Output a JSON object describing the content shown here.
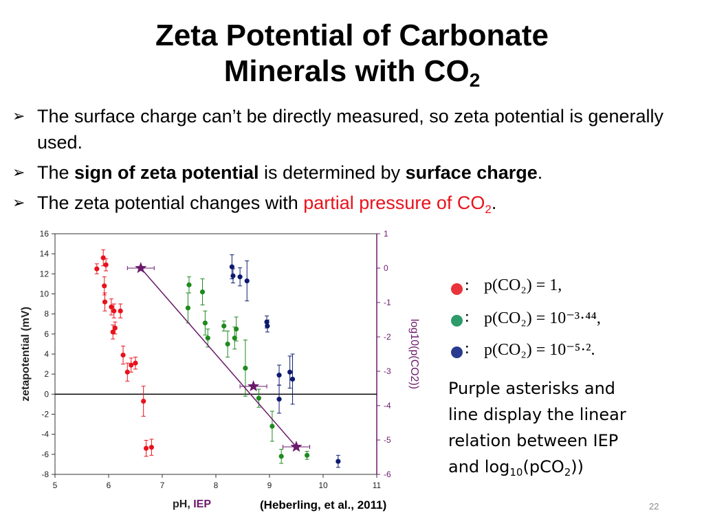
{
  "title": {
    "line1": "Zeta Potential of Carbonate",
    "line2": "Minerals with CO",
    "line2_sub": "2"
  },
  "bullets": [
    {
      "text": "The surface charge can’t be directly measured, so zeta potential is generally used."
    },
    {
      "pre": "The ",
      "bold1": "sign of zeta potential",
      "mid": " is determined by ",
      "bold2": "surface charge",
      "post": "."
    },
    {
      "pre": "The zeta potential changes with ",
      "red": "partial pressure of CO",
      "red_sub": "2",
      "post": "."
    }
  ],
  "legend": [
    {
      "color": "#e8343a",
      "colon": ":",
      "text": "p(CO₂) = 1,"
    },
    {
      "color": "#2e9b6a",
      "colon": ":",
      "text": "p(CO₂) = 10⁻³·⁴⁴,"
    },
    {
      "color": "#2a3a8f",
      "colon": ":",
      "text": "p(CO₂) = 10⁻⁵·²."
    }
  ],
  "description": {
    "line1": "Purple asterisks and",
    "line2": "line display the linear",
    "line3": "relation between IEP",
    "line4_pre": "and log",
    "line4_sub1": "10",
    "line4_mid": "(pCO",
    "line4_sub2": "2",
    "line4_post": "))"
  },
  "citation": "(Heberling, et al., 2011)",
  "page_number": "22",
  "colors": {
    "red": "#e8121b",
    "green": "#1f8a1f",
    "navy": "#0d1a6e",
    "purple": "#6b1a6b"
  },
  "chart_data": {
    "type": "scatter",
    "xlabel_parts": [
      "pH, ",
      "IEP"
    ],
    "ylabel": "zetapotential (mV)",
    "y2label": "log10(p(CO2))",
    "xlim": [
      5,
      11
    ],
    "ylim": [
      -8,
      16
    ],
    "y2lim": [
      -6,
      1
    ],
    "xticks": [
      5,
      6,
      7,
      8,
      9,
      10,
      11
    ],
    "yticks": [
      -8,
      -6,
      -4,
      -2,
      0,
      2,
      4,
      6,
      8,
      10,
      12,
      14,
      16
    ],
    "y2ticks": [
      -6,
      -5,
      -4,
      -3,
      -2,
      -1,
      0,
      1
    ],
    "series": [
      {
        "color": "#e8121b",
        "points": [
          {
            "x": 5.78,
            "y": 12.5,
            "e": 0.5
          },
          {
            "x": 5.9,
            "y": 13.6,
            "e": 0.8
          },
          {
            "x": 5.95,
            "y": 12.9,
            "e": 0.6
          },
          {
            "x": 5.92,
            "y": 10.8,
            "e": 0.9
          },
          {
            "x": 5.93,
            "y": 9.2,
            "e": 0.9
          },
          {
            "x": 6.05,
            "y": 8.7,
            "e": 0.8
          },
          {
            "x": 6.1,
            "y": 8.3,
            "e": 0.7
          },
          {
            "x": 6.22,
            "y": 8.3,
            "e": 0.7
          },
          {
            "x": 6.08,
            "y": 6.2,
            "e": 0.7
          },
          {
            "x": 6.12,
            "y": 6.6,
            "e": 0.6
          },
          {
            "x": 6.27,
            "y": 3.9,
            "e": 0.9
          },
          {
            "x": 6.35,
            "y": 2.2,
            "e": 0.9
          },
          {
            "x": 6.42,
            "y": 2.9,
            "e": 0.7
          },
          {
            "x": 6.5,
            "y": 3.1,
            "e": 0.6
          },
          {
            "x": 6.65,
            "y": -0.7,
            "e": 1.5
          },
          {
            "x": 6.7,
            "y": -5.4,
            "e": 0.8
          },
          {
            "x": 6.8,
            "y": -5.3,
            "e": 0.8
          }
        ]
      },
      {
        "color": "#1f8a1f",
        "points": [
          {
            "x": 7.48,
            "y": 8.6,
            "e": 1.5
          },
          {
            "x": 7.5,
            "y": 10.9,
            "e": 0.8
          },
          {
            "x": 7.75,
            "y": 10.2,
            "e": 1.3
          },
          {
            "x": 7.8,
            "y": 7.1,
            "e": 1.2
          },
          {
            "x": 7.85,
            "y": 5.6,
            "e": 0.9
          },
          {
            "x": 8.15,
            "y": 6.8,
            "e": 0.5
          },
          {
            "x": 8.22,
            "y": 5.0,
            "e": 1.3
          },
          {
            "x": 8.35,
            "y": 5.6,
            "e": 1.1
          },
          {
            "x": 8.38,
            "y": 6.5,
            "e": 1.2
          },
          {
            "x": 8.55,
            "y": 2.6,
            "e": 2.8
          },
          {
            "x": 8.8,
            "y": -0.4,
            "e": 0.9
          },
          {
            "x": 9.05,
            "y": -3.2,
            "e": 1.5
          },
          {
            "x": 9.22,
            "y": -6.2,
            "e": 0.7
          },
          {
            "x": 9.7,
            "y": -6.1,
            "e": 0.4
          }
        ]
      },
      {
        "color": "#0d1a6e",
        "points": [
          {
            "x": 8.3,
            "y": 12.7,
            "e": 1.2
          },
          {
            "x": 8.32,
            "y": 11.8,
            "e": 0.7
          },
          {
            "x": 8.45,
            "y": 11.7,
            "e": 0.9
          },
          {
            "x": 8.58,
            "y": 11.3,
            "e": 2.0
          },
          {
            "x": 8.95,
            "y": 7.2,
            "e": 0.6
          },
          {
            "x": 8.96,
            "y": 6.8,
            "e": 0.6
          },
          {
            "x": 9.18,
            "y": 1.9,
            "e": 1.0
          },
          {
            "x": 9.18,
            "y": -0.5,
            "e": 1.4
          },
          {
            "x": 9.38,
            "y": 2.2,
            "e": 1.6
          },
          {
            "x": 9.43,
            "y": 1.5,
            "e": 2.5
          },
          {
            "x": 10.28,
            "y": -6.7,
            "e": 0.6
          }
        ]
      }
    ],
    "iep_line": {
      "color": "#6b1a6b",
      "points": [
        {
          "x": 6.6,
          "y2": 0.0,
          "xerr": 0.25
        },
        {
          "x": 8.7,
          "y2": -3.44,
          "xerr": 0.25
        },
        {
          "x": 9.5,
          "y2": -5.2,
          "xerr": 0.25
        }
      ]
    }
  }
}
